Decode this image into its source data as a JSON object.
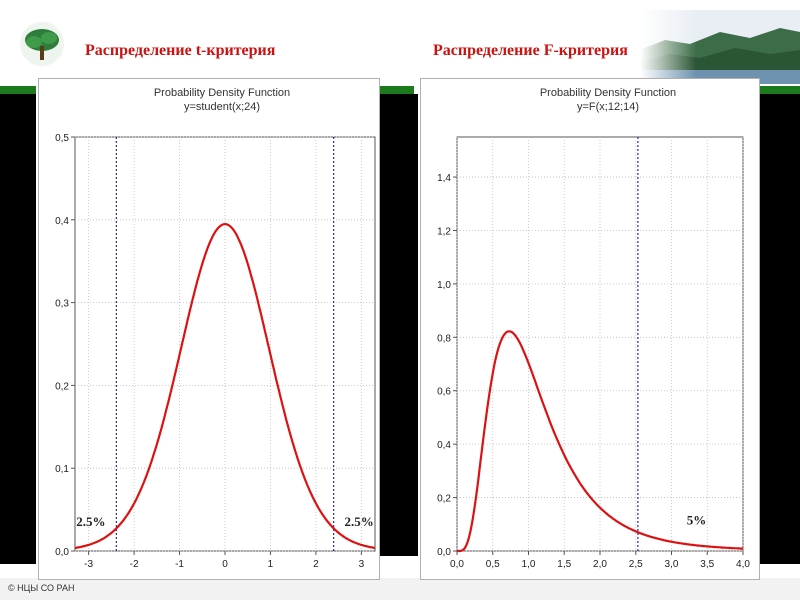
{
  "slide": {
    "title_left": "Распределение  t-критерия",
    "title_right": "Распределение  F-критерия",
    "footer": "© НЦЫ СО РАН",
    "accent_color": "#cc1111",
    "bar_color": "#1c7a1c"
  },
  "chart_data": [
    {
      "type": "line",
      "title": "Probability Density Function",
      "subtitle": "y=student(x;24)",
      "xlim": [
        -3.3,
        3.3
      ],
      "ylim": [
        0,
        0.5
      ],
      "xticks": [
        -3,
        -2,
        -1,
        0,
        1,
        2,
        3
      ],
      "xtick_labels": [
        "-3",
        "-2",
        "-1",
        "0",
        "1",
        "2",
        "3"
      ],
      "yticks": [
        0,
        0.1,
        0.2,
        0.3,
        0.4,
        0.5
      ],
      "ytick_labels": [
        "0,0",
        "0,1",
        "0,2",
        "0,3",
        "0,4",
        "0,5"
      ],
      "grid": true,
      "distribution": "student-t",
      "df": 24,
      "critical_lines": [
        -2.39,
        2.39
      ],
      "annotations": [
        {
          "text": "2.5%",
          "x": -2.95,
          "y": 0.03
        },
        {
          "text": "2.5%",
          "x": 2.95,
          "y": 0.03
        }
      ],
      "line_color": "#dd1111",
      "critical_color": "#2a2aa8"
    },
    {
      "type": "line",
      "title": "Probability Density Function",
      "subtitle": "y=F(x;12;14)",
      "xlim": [
        0,
        4
      ],
      "ylim": [
        0,
        1.55
      ],
      "xticks": [
        0,
        0.5,
        1,
        1.5,
        2,
        2.5,
        3,
        3.5,
        4
      ],
      "xtick_labels": [
        "0,0",
        "0,5",
        "1,0",
        "1,5",
        "2,0",
        "2,5",
        "3,0",
        "3,5",
        "4,0"
      ],
      "yticks": [
        0,
        0.2,
        0.4,
        0.6,
        0.8,
        1.0,
        1.2,
        1.4
      ],
      "ytick_labels": [
        "0,0",
        "0,2",
        "0,4",
        "0,6",
        "0,8",
        "1,0",
        "1,2",
        "1,4"
      ],
      "grid": true,
      "distribution": "F",
      "df1": 12,
      "df2": 14,
      "critical_lines": [
        2.53
      ],
      "annotations": [
        {
          "text": "5%",
          "x": 3.35,
          "y": 0.1
        }
      ],
      "line_color": "#dd1111",
      "critical_color": "#2a2aa8"
    }
  ]
}
